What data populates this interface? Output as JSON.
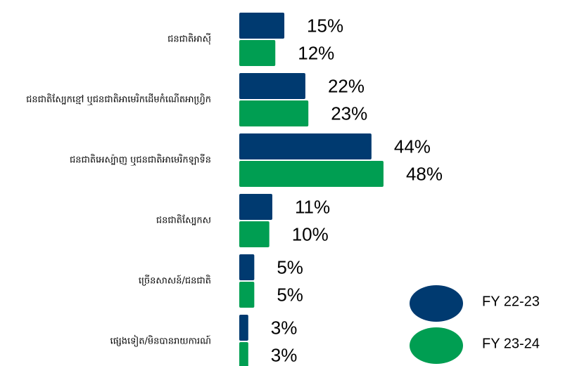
{
  "chart_data": {
    "type": "bar",
    "orientation": "horizontal",
    "categories": [
      "ជនជាតិអាស៊ី",
      "ជនជាតិស្បែកខ្មៅ ឬជនជាតិអាមេរិកដើមកំណើតអាហ្វ្រិក",
      "ជនជាតិអេស្ប៉ាញ ឬជនជាតិអាមេរិកឡាទីន",
      "ជនជាតិស្បែកស",
      "ច្រើនសាសន៍/ជនជាតិ",
      "ផ្សេងទៀត/មិនបានរាយការណ៍"
    ],
    "series": [
      {
        "name": "FY 22-23",
        "color": "#003a70",
        "values": [
          15,
          22,
          44,
          11,
          5,
          3
        ],
        "value_labels": [
          "15%",
          "22%",
          "44%",
          "11%",
          "5%",
          "3%"
        ]
      },
      {
        "name": "FY 23-24",
        "color": "#009e52",
        "values": [
          12,
          23,
          48,
          10,
          5,
          3
        ],
        "value_labels": [
          "12%",
          "23%",
          "48%",
          "10%",
          "5%",
          "3%"
        ]
      }
    ]
  }
}
